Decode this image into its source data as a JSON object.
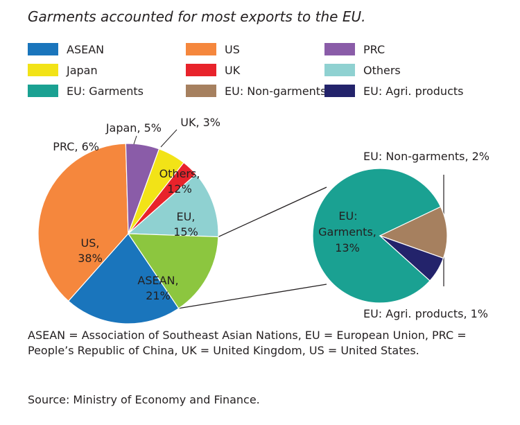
{
  "title": "Garments accounted for most exports to the EU.",
  "legend": [
    {
      "label": "ASEAN",
      "color": "#1a75bc"
    },
    {
      "label": "US",
      "color": "#f5873d"
    },
    {
      "label": "PRC",
      "color": "#8a5ca8"
    },
    {
      "label": "Japan",
      "color": "#f2e317"
    },
    {
      "label": "UK",
      "color": "#e8232b"
    },
    {
      "label": "Others",
      "color": "#8fd1d1"
    },
    {
      "label": "EU: Garments",
      "color": "#1aa192"
    },
    {
      "label": "EU: Non-garments",
      "color": "#a6805f"
    },
    {
      "label": "EU: Agri. products",
      "color": "#23236b"
    }
  ],
  "chart_data": [
    {
      "type": "pie",
      "slices": [
        {
          "label": "ASEAN",
          "value": 21,
          "display": "ASEAN, 21%",
          "color": "#1a75bc"
        },
        {
          "label": "US",
          "value": 38,
          "display": "US, 38%",
          "color": "#f5873d"
        },
        {
          "label": "PRC",
          "value": 6,
          "display": "PRC, 6%",
          "color": "#8a5ca8"
        },
        {
          "label": "Japan",
          "value": 5,
          "display": "Japan, 5%",
          "color": "#f2e317"
        },
        {
          "label": "UK",
          "value": 3,
          "display": "UK, 3%",
          "color": "#e8232b"
        },
        {
          "label": "Others",
          "value": 12,
          "display": "Others, 12%",
          "color": "#8fd1d1"
        },
        {
          "label": "EU",
          "value": 15,
          "display": "EU, 15%",
          "color": "#8cc63f"
        }
      ]
    },
    {
      "type": "pie",
      "slices": [
        {
          "label": "EU: Garments",
          "value": 13,
          "display": "EU: Garments, 13%",
          "color": "#1aa192"
        },
        {
          "label": "EU: Non-garments",
          "value": 2,
          "display": "EU: Non-garments, 2%",
          "color": "#a6805f"
        },
        {
          "label": "EU: Agri. products",
          "value": 1,
          "display": "EU: Agri. products, 1%",
          "color": "#23236b"
        }
      ]
    }
  ],
  "notes": {
    "abbreviations": "ASEAN = Association of Southeast Asian Nations, EU = European Union, PRC = People’s Republic of China, UK = United Kingdom, US = United States.",
    "source": "Source: Ministry of Economy and Finance."
  }
}
